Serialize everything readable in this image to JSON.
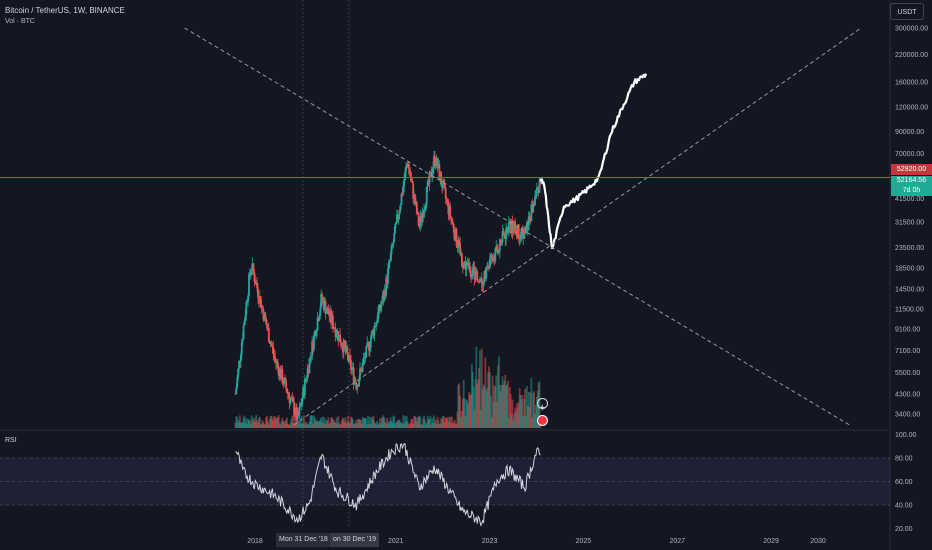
{
  "header": {
    "title": "Bitcoin / TetherUS, 1W, BINANCE",
    "subtitle": "Vol · BTC",
    "currency": "USDT"
  },
  "rsi_label": "RSI",
  "price_tags": {
    "red": "52920.00",
    "green_price": "52164.56",
    "green_countdown": "7d 0h"
  },
  "crosshair": {
    "label_a": "Mon 31 Dec '18",
    "label_b": "on 30 Dec '19"
  },
  "colors": {
    "background": "#131722",
    "up": "#26a69a",
    "down": "#ef5350",
    "projection": "#ffffff",
    "trendline": "#9598a1",
    "resistance": "#f23645",
    "rsi_line": "#d1d4dc",
    "rsi_band": "#7e57c2"
  },
  "icons": [
    "lightning-icon",
    "news-icon"
  ],
  "chart_data": [
    {
      "type": "candlestick",
      "scale": "log",
      "y_ticks": [
        "300000.00",
        "220000.00",
        "160000.00",
        "120000.00",
        "90000.00",
        "70000.00",
        "41500.00",
        "31500.00",
        "23500.00",
        "18500.00",
        "14500.00",
        "11500.00",
        "9100.00",
        "7100.00",
        "5500.00",
        "4300.00",
        "3400.00"
      ],
      "x_ticks": [
        "2018",
        "2021",
        "2023",
        "2025",
        "2027",
        "2029",
        "2030"
      ],
      "horizontal_line": 52920,
      "series": [
        {
          "name": "",
          "kind": "price",
          "x": [
            "2017-08",
            "2017-12",
            "2018-06",
            "2018-12",
            "2019-06",
            "2019-12",
            "2020-03",
            "2020-10",
            "2021-04",
            "2021-07",
            "2021-11",
            "2022-06",
            "2022-11",
            "2023-06",
            "2023-10",
            "2024-02"
          ],
          "values": [
            4300,
            19500,
            6500,
            3200,
            13000,
            7200,
            4800,
            13500,
            64000,
            30000,
            67500,
            20000,
            16000,
            30500,
            27000,
            52164
          ]
        },
        {
          "name": "",
          "kind": "projection",
          "x": [
            "2024-03",
            "2024-05",
            "2024-08",
            "2024-11",
            "2025-02",
            "2025-05",
            "2025-08",
            "2025-11",
            "2026-02",
            "2026-05"
          ],
          "values": [
            48000,
            23000,
            38000,
            41000,
            46000,
            53000,
            88000,
            120000,
            160000,
            175000
          ]
        }
      ],
      "trendlines": [
        {
          "x1": "2016-07",
          "y1": 300000,
          "x2": "2030-09",
          "y2": 3000
        },
        {
          "x1": "2018-11",
          "y1": 3000,
          "x2": "2030-12",
          "y2": 300000
        }
      ]
    },
    {
      "type": "line",
      "title": "RSI",
      "y_ticks": [
        "100.00",
        "80.00",
        "60.00",
        "40.00",
        "20.00"
      ],
      "ylim": [
        20,
        100
      ],
      "band": [
        30,
        70
      ],
      "x": [
        "2017-08",
        "2017-10",
        "2018-01",
        "2018-06",
        "2018-12",
        "2019-03",
        "2019-06",
        "2019-10",
        "2020-03",
        "2020-08",
        "2020-12",
        "2021-03",
        "2021-07",
        "2021-11",
        "2022-06",
        "2022-11",
        "2023-03",
        "2023-06",
        "2023-10",
        "2024-01",
        "2024-02"
      ],
      "values": [
        88,
        68,
        58,
        48,
        28,
        42,
        82,
        52,
        40,
        68,
        86,
        92,
        55,
        72,
        35,
        26,
        62,
        70,
        55,
        85,
        82
      ]
    }
  ]
}
